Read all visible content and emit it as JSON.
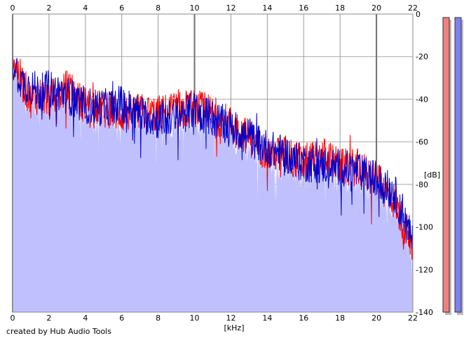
{
  "chart_data": {
    "type": "area",
    "xlabel": "[kHz]",
    "ylabel": "[dB]",
    "xlim": [
      0,
      22
    ],
    "ylim": [
      -140,
      0
    ],
    "x_ticks": [
      0,
      2,
      4,
      6,
      8,
      10,
      12,
      14,
      16,
      18,
      20,
      22
    ],
    "y_ticks": [
      0,
      -20,
      -40,
      -60,
      -80,
      -100,
      -120,
      -140
    ],
    "grid": true,
    "footer": "created by Hub Audio Tools",
    "series": [
      {
        "color": "#ff0000",
        "x": [
          0,
          0.5,
          1,
          1.5,
          2,
          3,
          4,
          5,
          6,
          7,
          8,
          9,
          10,
          11,
          12,
          13,
          14,
          15,
          16,
          17,
          18,
          19,
          20,
          21,
          22
        ],
        "y": [
          -20,
          -32,
          -40,
          -38,
          -40,
          -35,
          -43,
          -45,
          -47,
          -46,
          -47,
          -45,
          -44,
          -47,
          -52,
          -58,
          -65,
          -66,
          -70,
          -66,
          -72,
          -72,
          -78,
          -88,
          -110
        ]
      },
      {
        "color": "#0000cc",
        "x": [
          0,
          0.5,
          1,
          1.5,
          2,
          3,
          4,
          5,
          6,
          7,
          8,
          9,
          10,
          11,
          12,
          13,
          14,
          15,
          16,
          17,
          18,
          19,
          20,
          21,
          22
        ],
        "y": [
          -22,
          -32,
          -34,
          -37,
          -35,
          -38,
          -43,
          -44,
          -42,
          -47,
          -50,
          -48,
          -45,
          -49,
          -53,
          -58,
          -63,
          -66,
          -70,
          -71,
          -72,
          -74,
          -78,
          -84,
          -108
        ]
      }
    ],
    "area_fill": "#c0c0ff",
    "meter_colors": [
      "#f08080",
      "#8080f0"
    ]
  }
}
